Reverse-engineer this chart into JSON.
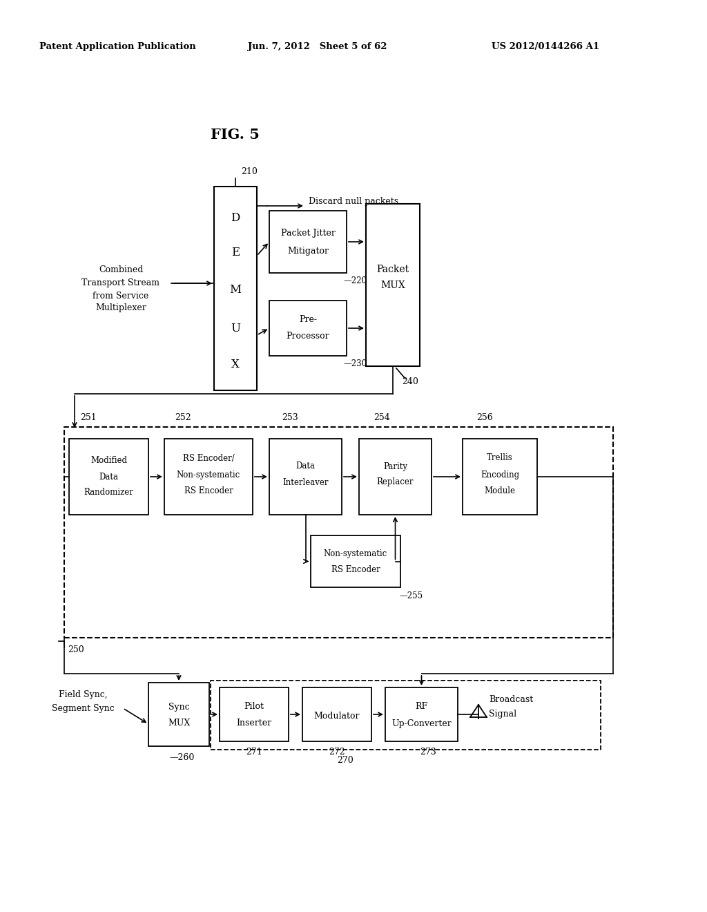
{
  "header_left": "Patent Application Publication",
  "header_mid": "Jun. 7, 2012   Sheet 5 of 62",
  "header_right": "US 2012/0144266 A1",
  "fig_title": "FIG. 5",
  "bg_color": "#ffffff",
  "text_color": "#000000"
}
